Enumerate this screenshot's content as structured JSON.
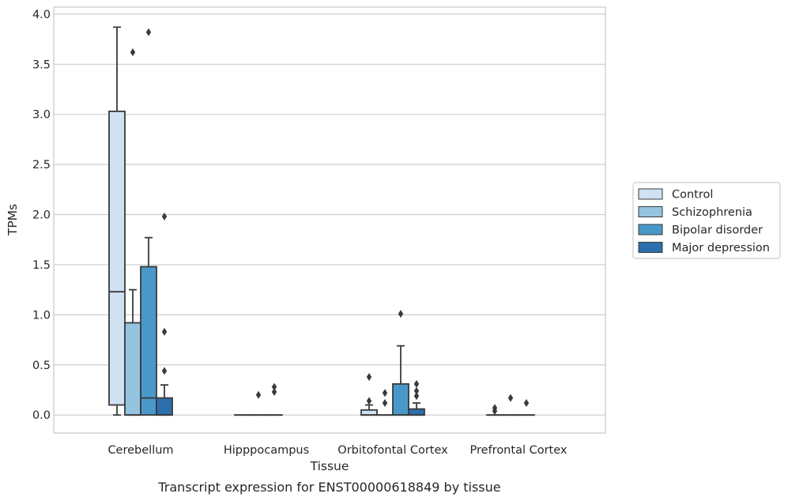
{
  "caption": "Transcript expression for ENST00000618849 by tissue",
  "chart_data": {
    "type": "box",
    "xlabel": "Tissue",
    "ylabel": "TPMs",
    "ylim": [
      -0.18,
      4.07
    ],
    "yticks": [
      0.0,
      0.5,
      1.0,
      1.5,
      2.0,
      2.5,
      3.0,
      3.5,
      4.0
    ],
    "ytick_labels": [
      "0.0",
      "0.5",
      "1.0",
      "1.5",
      "2.0",
      "2.5",
      "3.0",
      "3.5",
      "4.0"
    ],
    "categories": [
      "Cerebellum",
      "Hipppocampus",
      "Orbitofontal Cortex",
      "Prefrontal Cortex"
    ],
    "grid": true,
    "legend_position": "right",
    "series": [
      {
        "name": "Control",
        "color": "#d0e1f2",
        "boxes": [
          {
            "q1": 0.1,
            "median": 1.23,
            "q3": 3.03,
            "whisker_low": 0.0,
            "whisker_high": 3.87,
            "outliers": []
          },
          {
            "q1": 0.0,
            "median": 0.0,
            "q3": 0.0,
            "whisker_low": 0.0,
            "whisker_high": 0.0,
            "outliers": []
          },
          {
            "q1": 0.0,
            "median": 0.0,
            "q3": 0.05,
            "whisker_low": 0.0,
            "whisker_high": 0.1,
            "outliers": [
              0.38,
              0.14
            ]
          },
          {
            "q1": 0.0,
            "median": 0.0,
            "q3": 0.0,
            "whisker_low": 0.0,
            "whisker_high": 0.0,
            "outliers": [
              0.07,
              0.04
            ]
          }
        ]
      },
      {
        "name": "Schizophrenia",
        "color": "#94c4df",
        "boxes": [
          {
            "q1": 0.0,
            "median": 0.0,
            "q3": 0.92,
            "whisker_low": 0.0,
            "whisker_high": 1.25,
            "outliers": [
              3.62
            ]
          },
          {
            "q1": 0.0,
            "median": 0.0,
            "q3": 0.0,
            "whisker_low": 0.0,
            "whisker_high": 0.0,
            "outliers": [
              0.2
            ]
          },
          {
            "q1": 0.0,
            "median": 0.0,
            "q3": 0.0,
            "whisker_low": 0.0,
            "whisker_high": 0.0,
            "outliers": [
              0.22,
              0.12
            ]
          },
          {
            "q1": 0.0,
            "median": 0.0,
            "q3": 0.0,
            "whisker_low": 0.0,
            "whisker_high": 0.0,
            "outliers": [
              0.17
            ]
          }
        ]
      },
      {
        "name": "Bipolar disorder",
        "color": "#4a98c9",
        "boxes": [
          {
            "q1": 0.0,
            "median": 0.17,
            "q3": 1.48,
            "whisker_low": 0.0,
            "whisker_high": 1.77,
            "outliers": [
              3.82
            ]
          },
          {
            "q1": 0.0,
            "median": 0.0,
            "q3": 0.0,
            "whisker_low": 0.0,
            "whisker_high": 0.0,
            "outliers": [
              0.28,
              0.23
            ]
          },
          {
            "q1": 0.0,
            "median": 0.0,
            "q3": 0.31,
            "whisker_low": 0.0,
            "whisker_high": 0.69,
            "outliers": [
              1.01
            ]
          },
          {
            "q1": 0.0,
            "median": 0.0,
            "q3": 0.0,
            "whisker_low": 0.0,
            "whisker_high": 0.0,
            "outliers": [
              0.12
            ]
          }
        ]
      },
      {
        "name": "Major depression",
        "color": "#2d6fad",
        "boxes": [
          {
            "q1": 0.0,
            "median": 0.0,
            "q3": 0.17,
            "whisker_low": 0.0,
            "whisker_high": 0.3,
            "outliers": [
              1.98,
              0.83,
              0.44
            ]
          },
          null,
          {
            "q1": 0.0,
            "median": 0.0,
            "q3": 0.06,
            "whisker_low": 0.0,
            "whisker_high": 0.12,
            "outliers": [
              0.31,
              0.24,
              0.19
            ]
          },
          null
        ]
      }
    ]
  }
}
